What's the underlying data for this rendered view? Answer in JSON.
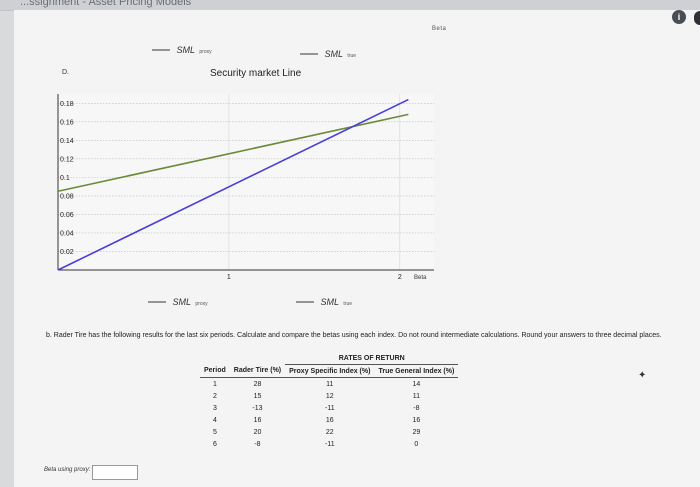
{
  "header": {
    "breadcrumb": "...ssignment - Asset Pricing Models",
    "top_beta_label": "Beta",
    "info_glyph": "i"
  },
  "part_a": {
    "label": "D.",
    "title": "Security market Line",
    "legend_top": {
      "proxy_main": "SML",
      "proxy_sub": "proxy",
      "true_main": "SML",
      "true_sub": "true"
    },
    "legend_bottom": {
      "proxy_main": "SML",
      "proxy_sub": "proxy",
      "true_main": "SML",
      "true_sub": "true"
    }
  },
  "chart_data": {
    "type": "line",
    "title": "Security market Line",
    "xlabel": "Beta",
    "ylabel": "",
    "xlim": [
      0,
      2.2
    ],
    "ylim": [
      0,
      0.19
    ],
    "x_ticks": [
      "1",
      "2"
    ],
    "y_ticks": [
      "0.02",
      "0.04",
      "0.06",
      "0.08",
      "0.1",
      "0.12",
      "0.14",
      "0.16",
      "0.18"
    ],
    "series": [
      {
        "name": "SML proxy",
        "color": "#6b8a3a",
        "points": [
          [
            0,
            0.085
          ],
          [
            2.05,
            0.168
          ]
        ]
      },
      {
        "name": "SML true",
        "color": "#4a3fd6",
        "points": [
          [
            0,
            0.0
          ],
          [
            2.05,
            0.184
          ]
        ]
      }
    ],
    "grid": true
  },
  "part_b": {
    "question": "b. Rader Tire has the following results for the last six periods. Calculate and compare the betas using each index. Do not round intermediate calculations. Round your answers to three decimal places.",
    "table": {
      "group_header": "RATES OF RETURN",
      "columns": [
        "Period",
        "Rader Tire (%)",
        "Proxy Specific Index (%)",
        "True General Index (%)"
      ],
      "rows": [
        [
          "1",
          "28",
          "11",
          "14"
        ],
        [
          "2",
          "15",
          "12",
          "11"
        ],
        [
          "3",
          "-13",
          "-11",
          "-8"
        ],
        [
          "4",
          "16",
          "16",
          "16"
        ],
        [
          "5",
          "20",
          "22",
          "29"
        ],
        [
          "6",
          "-8",
          "-11",
          "0"
        ]
      ]
    },
    "answer_label": "Beta using proxy:",
    "answer_value": ""
  }
}
